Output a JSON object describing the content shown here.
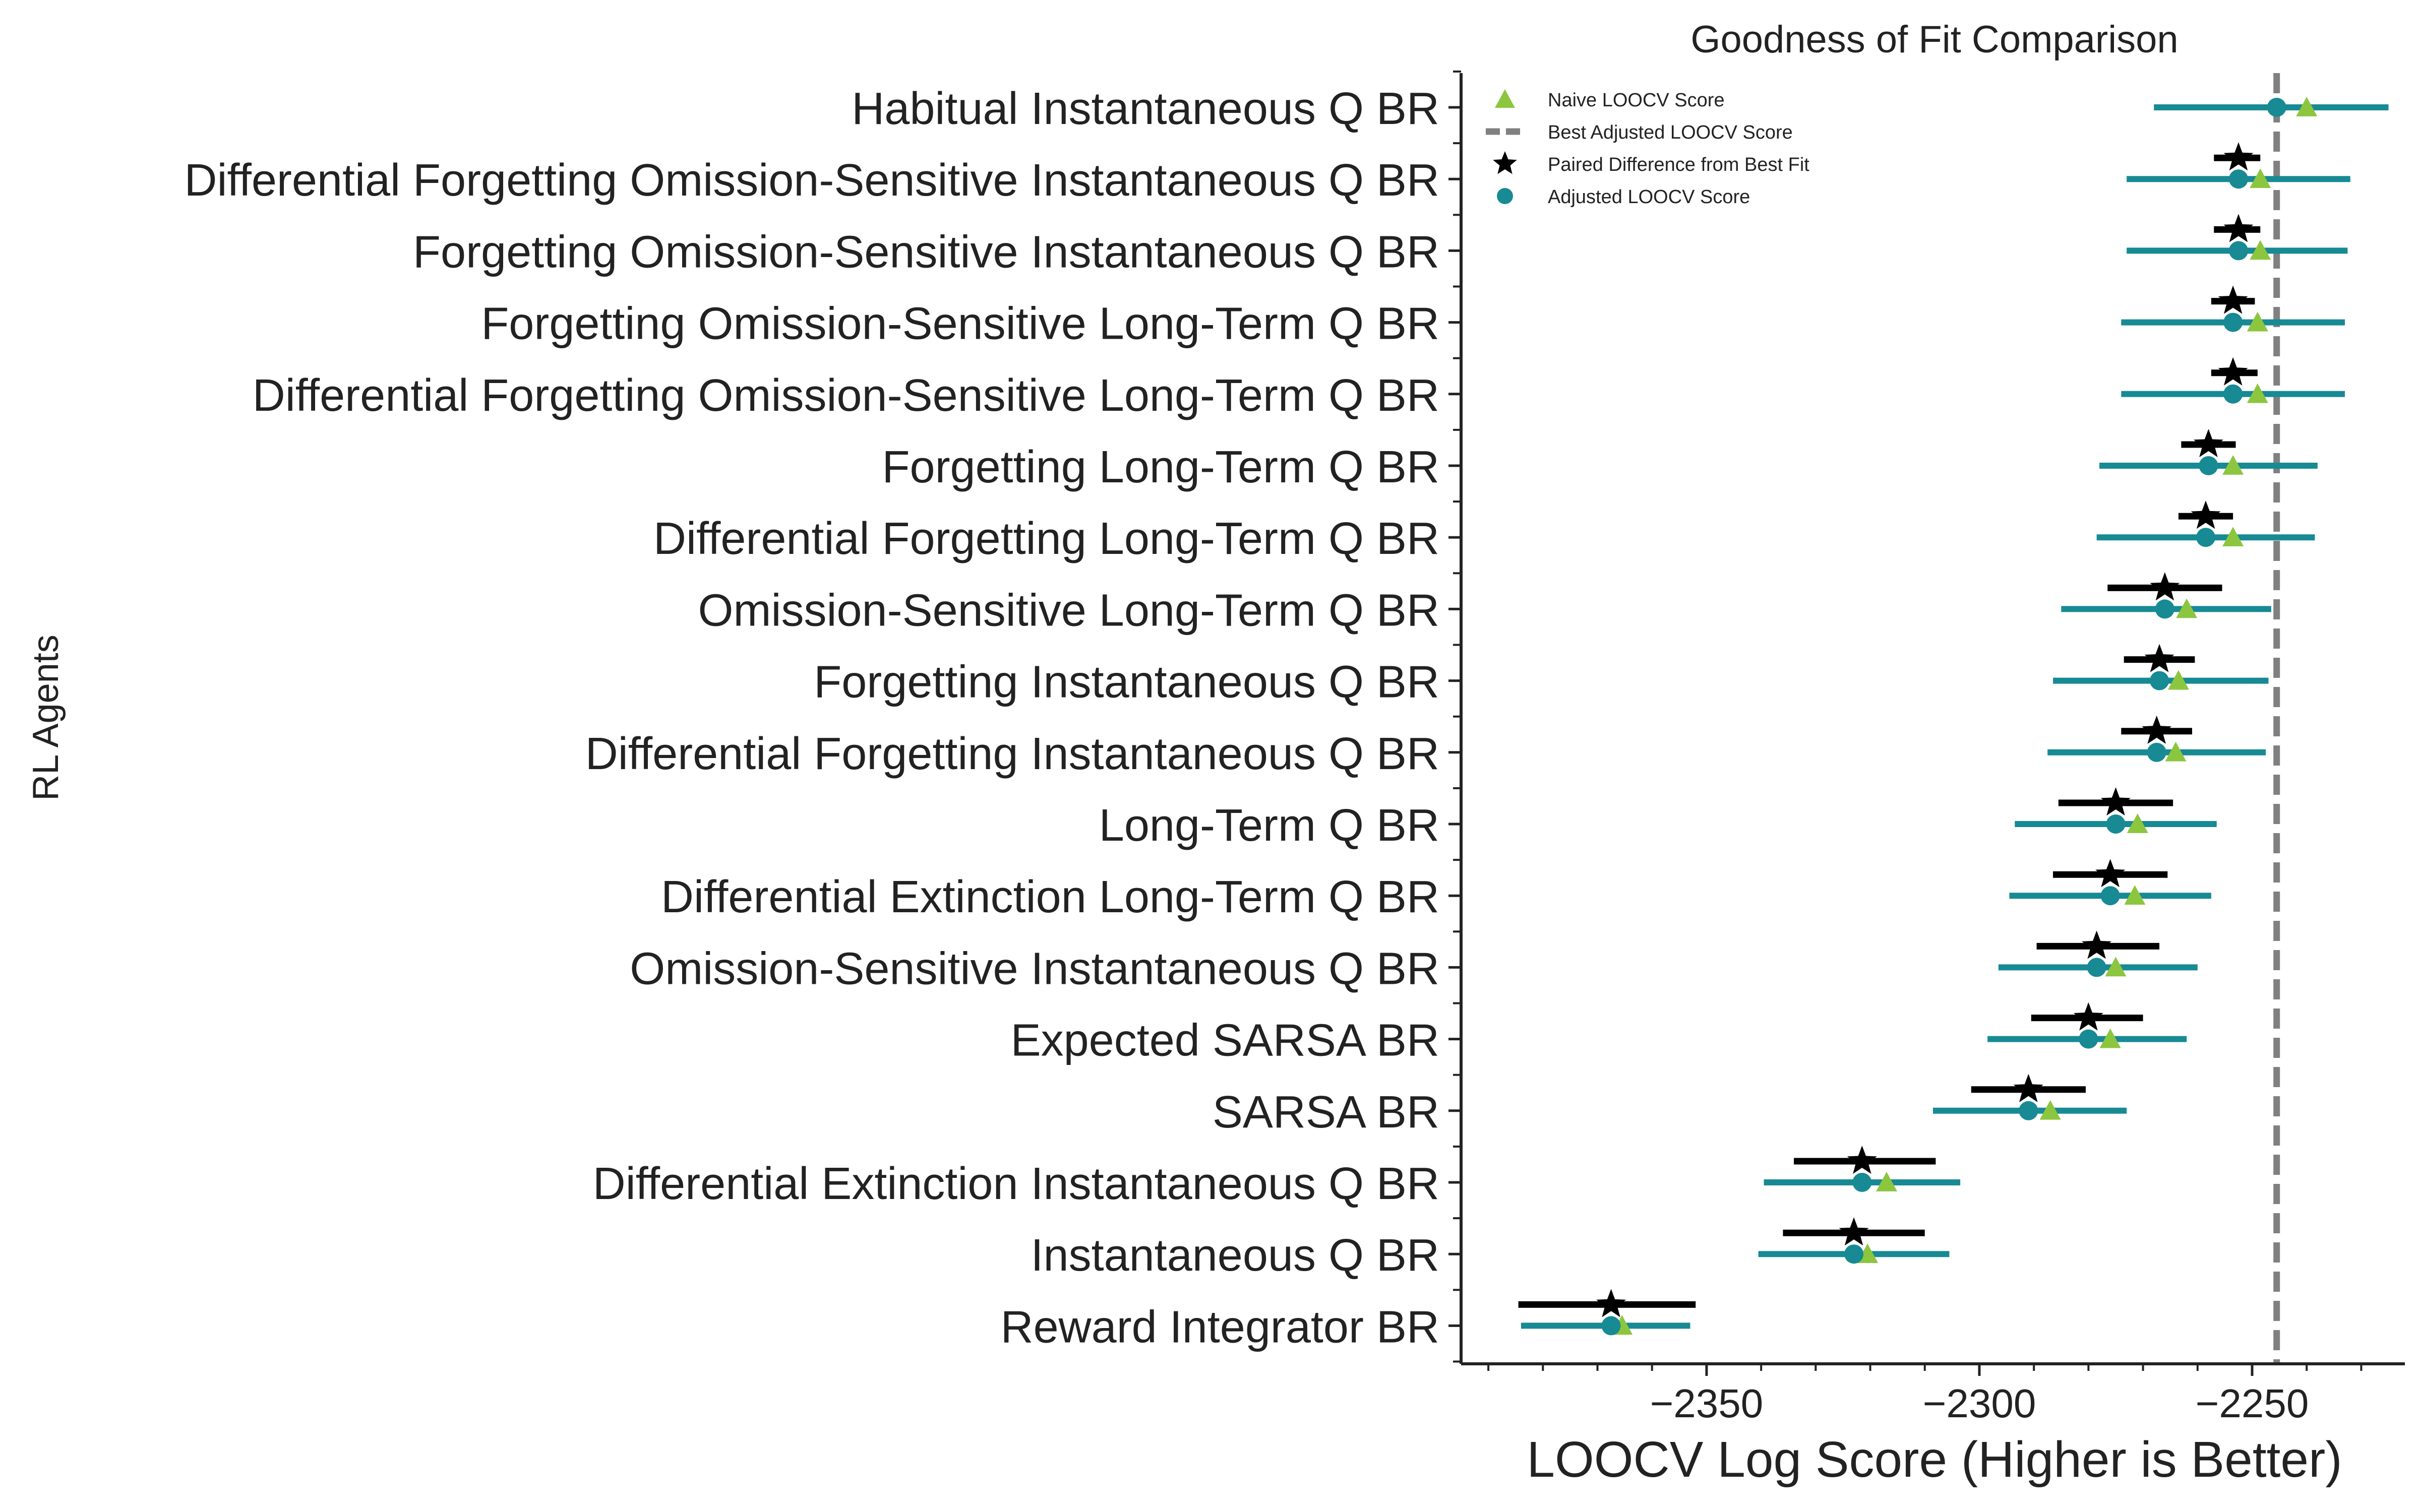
{
  "chart_data": {
    "type": "scatter",
    "title": "Goodness of Fit Comparison",
    "xlabel": "LOOCV Log Score (Higher is Better)",
    "ylabel": "RL Agents",
    "xlim": [
      -2395,
      -2222
    ],
    "xticks": [
      -2350,
      -2300,
      -2250
    ],
    "xtick_labels": [
      "−2350",
      "−2300",
      "−2250"
    ],
    "best_adjusted_score": -2245.5,
    "legend_position": "upper-left",
    "legend": [
      {
        "key": "naive",
        "label": "Naive LOOCV Score"
      },
      {
        "key": "best",
        "label": "Best Adjusted LOOCV Score"
      },
      {
        "key": "paired",
        "label": "Paired Difference from Best Fit"
      },
      {
        "key": "adjusted",
        "label": "Adjusted LOOCV Score"
      }
    ],
    "colors": {
      "naive": "#8cc63f",
      "adjusted": "#178a94",
      "paired": "#000000",
      "best": "#808080"
    },
    "agents": [
      {
        "name": "Habitual Instantaneous Q BR",
        "adjusted": -2245.5,
        "adj_err": [
          -2268.0,
          -2225.0
        ],
        "naive": -2240.0,
        "paired": null,
        "paired_err": null
      },
      {
        "name": "Differential Forgetting Omission-Sensitive Instantaneous Q BR",
        "adjusted": -2252.5,
        "adj_err": [
          -2273.0,
          -2232.0
        ],
        "naive": -2248.5,
        "paired": -2252.5,
        "paired_err": [
          -2257.0,
          -2248.5
        ]
      },
      {
        "name": "Forgetting Omission-Sensitive Instantaneous Q BR",
        "adjusted": -2252.5,
        "adj_err": [
          -2273.0,
          -2232.5
        ],
        "naive": -2248.5,
        "paired": -2252.5,
        "paired_err": [
          -2257.0,
          -2248.5
        ]
      },
      {
        "name": "Forgetting Omission-Sensitive Long-Term Q BR",
        "adjusted": -2253.5,
        "adj_err": [
          -2274.0,
          -2233.0
        ],
        "naive": -2249.0,
        "paired": -2253.5,
        "paired_err": [
          -2257.5,
          -2249.5
        ]
      },
      {
        "name": "Differential Forgetting Omission-Sensitive Long-Term Q BR",
        "adjusted": -2253.5,
        "adj_err": [
          -2274.0,
          -2233.0
        ],
        "naive": -2249.0,
        "paired": -2253.5,
        "paired_err": [
          -2257.5,
          -2249.0
        ]
      },
      {
        "name": "Forgetting Long-Term Q BR",
        "adjusted": -2258.0,
        "adj_err": [
          -2278.0,
          -2238.0
        ],
        "naive": -2253.5,
        "paired": -2258.0,
        "paired_err": [
          -2263.0,
          -2253.0
        ]
      },
      {
        "name": "Differential Forgetting Long-Term Q BR",
        "adjusted": -2258.5,
        "adj_err": [
          -2278.5,
          -2238.5
        ],
        "naive": -2253.5,
        "paired": -2258.5,
        "paired_err": [
          -2263.5,
          -2253.5
        ]
      },
      {
        "name": "Omission-Sensitive Long-Term Q BR",
        "adjusted": -2266.0,
        "adj_err": [
          -2285.0,
          -2246.5
        ],
        "naive": -2262.0,
        "paired": -2266.0,
        "paired_err": [
          -2276.5,
          -2255.5
        ]
      },
      {
        "name": "Forgetting Instantaneous Q BR",
        "adjusted": -2267.0,
        "adj_err": [
          -2286.5,
          -2247.0
        ],
        "naive": -2263.5,
        "paired": -2267.0,
        "paired_err": [
          -2273.5,
          -2260.5
        ]
      },
      {
        "name": "Differential Forgetting Instantaneous Q BR",
        "adjusted": -2267.5,
        "adj_err": [
          -2287.5,
          -2247.5
        ],
        "naive": -2264.0,
        "paired": -2267.5,
        "paired_err": [
          -2274.0,
          -2261.0
        ]
      },
      {
        "name": "Long-Term Q BR",
        "adjusted": -2275.0,
        "adj_err": [
          -2293.5,
          -2256.5
        ],
        "naive": -2271.0,
        "paired": -2275.0,
        "paired_err": [
          -2285.5,
          -2264.5
        ]
      },
      {
        "name": "Differential Extinction Long-Term Q BR",
        "adjusted": -2276.0,
        "adj_err": [
          -2294.5,
          -2257.5
        ],
        "naive": -2271.5,
        "paired": -2276.0,
        "paired_err": [
          -2286.5,
          -2265.5
        ]
      },
      {
        "name": "Omission-Sensitive Instantaneous Q BR",
        "adjusted": -2278.5,
        "adj_err": [
          -2296.5,
          -2260.0
        ],
        "naive": -2275.0,
        "paired": -2278.5,
        "paired_err": [
          -2289.5,
          -2267.0
        ]
      },
      {
        "name": "Expected SARSA BR",
        "adjusted": -2280.0,
        "adj_err": [
          -2298.5,
          -2262.0
        ],
        "naive": -2276.0,
        "paired": -2280.0,
        "paired_err": [
          -2290.5,
          -2270.0
        ]
      },
      {
        "name": "SARSA BR",
        "adjusted": -2291.0,
        "adj_err": [
          -2308.5,
          -2273.0
        ],
        "naive": -2287.0,
        "paired": -2291.0,
        "paired_err": [
          -2301.5,
          -2280.5
        ]
      },
      {
        "name": "Differential Extinction Instantaneous Q BR",
        "adjusted": -2321.5,
        "adj_err": [
          -2339.5,
          -2303.5
        ],
        "naive": -2317.0,
        "paired": -2321.5,
        "paired_err": [
          -2334.0,
          -2308.0
        ]
      },
      {
        "name": "Instantaneous Q BR",
        "adjusted": -2323.0,
        "adj_err": [
          -2340.5,
          -2305.5
        ],
        "naive": -2320.5,
        "paired": -2323.0,
        "paired_err": [
          -2336.0,
          -2310.0
        ]
      },
      {
        "name": "Reward Integrator BR",
        "adjusted": -2367.5,
        "adj_err": [
          -2384.0,
          -2353.0
        ],
        "naive": -2365.5,
        "paired": -2367.5,
        "paired_err": [
          -2384.5,
          -2352.0
        ]
      }
    ]
  }
}
